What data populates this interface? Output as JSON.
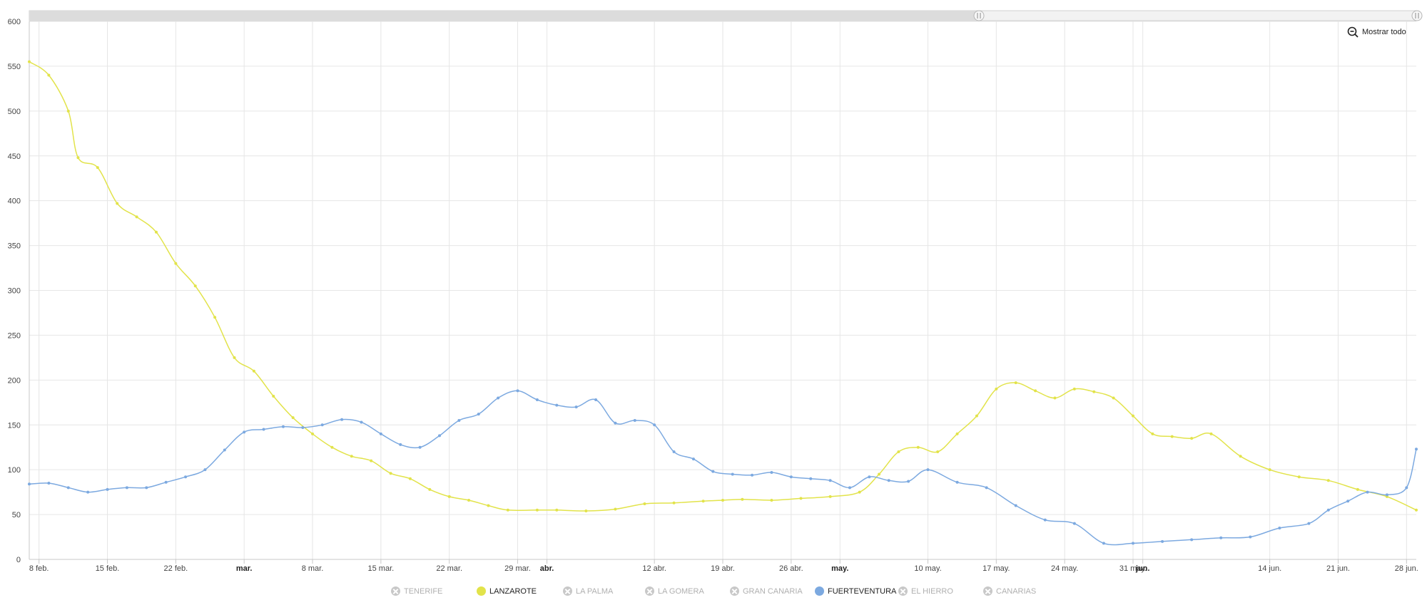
{
  "reset_zoom_label": "Mostrar todo",
  "chart_data": {
    "type": "line",
    "title": "",
    "xlabel": "",
    "ylabel": "",
    "ylim": [
      0,
      600
    ],
    "yticks": [
      0,
      50,
      100,
      150,
      200,
      250,
      300,
      350,
      400,
      450,
      500,
      550,
      600
    ],
    "xrange": [
      "2021-02-07",
      "2021-06-29"
    ],
    "xticks": [
      {
        "date": "2021-02-08",
        "label": "8 feb.",
        "major": false
      },
      {
        "date": "2021-02-15",
        "label": "15 feb.",
        "major": false
      },
      {
        "date": "2021-02-22",
        "label": "22 feb.",
        "major": false
      },
      {
        "date": "2021-03-01",
        "label": "mar.",
        "major": true
      },
      {
        "date": "2021-03-08",
        "label": "8 mar.",
        "major": false
      },
      {
        "date": "2021-03-15",
        "label": "15 mar.",
        "major": false
      },
      {
        "date": "2021-03-22",
        "label": "22 mar.",
        "major": false
      },
      {
        "date": "2021-03-29",
        "label": "29 mar.",
        "major": false
      },
      {
        "date": "2021-04-01",
        "label": "abr.",
        "major": true
      },
      {
        "date": "2021-04-12",
        "label": "12 abr.",
        "major": false
      },
      {
        "date": "2021-04-19",
        "label": "19 abr.",
        "major": false
      },
      {
        "date": "2021-04-26",
        "label": "26 abr.",
        "major": false
      },
      {
        "date": "2021-05-01",
        "label": "may.",
        "major": true
      },
      {
        "date": "2021-05-10",
        "label": "10 may.",
        "major": false
      },
      {
        "date": "2021-05-17",
        "label": "17 may.",
        "major": false
      },
      {
        "date": "2021-05-24",
        "label": "24 may.",
        "major": false
      },
      {
        "date": "2021-05-31",
        "label": "31 may.",
        "major": false
      },
      {
        "date": "2021-06-01",
        "label": "jun.",
        "major": true
      },
      {
        "date": "2021-06-14",
        "label": "14 jun.",
        "major": false
      },
      {
        "date": "2021-06-21",
        "label": "21 jun.",
        "major": false
      },
      {
        "date": "2021-06-28",
        "label": "28 jun.",
        "major": false
      }
    ],
    "grid": true,
    "legend_position": "bottom",
    "series": [
      {
        "name": "LANZAROTE",
        "color": "#e2e34a",
        "x": [
          "2021-02-07",
          "2021-02-09",
          "2021-02-11",
          "2021-02-12",
          "2021-02-14",
          "2021-02-16",
          "2021-02-18",
          "2021-02-20",
          "2021-02-22",
          "2021-02-24",
          "2021-02-26",
          "2021-02-28",
          "2021-03-02",
          "2021-03-04",
          "2021-03-06",
          "2021-03-08",
          "2021-03-10",
          "2021-03-12",
          "2021-03-14",
          "2021-03-16",
          "2021-03-18",
          "2021-03-20",
          "2021-03-22",
          "2021-03-24",
          "2021-03-26",
          "2021-03-28",
          "2021-03-31",
          "2021-04-02",
          "2021-04-05",
          "2021-04-08",
          "2021-04-11",
          "2021-04-14",
          "2021-04-17",
          "2021-04-19",
          "2021-04-21",
          "2021-04-24",
          "2021-04-27",
          "2021-04-30",
          "2021-05-03",
          "2021-05-05",
          "2021-05-07",
          "2021-05-09",
          "2021-05-11",
          "2021-05-13",
          "2021-05-15",
          "2021-05-17",
          "2021-05-19",
          "2021-05-21",
          "2021-05-23",
          "2021-05-25",
          "2021-05-27",
          "2021-05-29",
          "2021-05-31",
          "2021-06-02",
          "2021-06-04",
          "2021-06-06",
          "2021-06-08",
          "2021-06-11",
          "2021-06-14",
          "2021-06-17",
          "2021-06-20",
          "2021-06-23",
          "2021-06-26",
          "2021-06-29"
        ],
        "y": [
          555,
          540,
          500,
          448,
          437,
          397,
          382,
          365,
          330,
          305,
          270,
          225,
          210,
          182,
          158,
          140,
          125,
          115,
          110,
          96,
          90,
          78,
          70,
          66,
          60,
          55,
          55,
          55,
          54,
          56,
          62,
          63,
          65,
          66,
          67,
          66,
          68,
          70,
          75,
          95,
          120,
          125,
          120,
          140,
          160,
          190,
          197,
          188,
          180,
          190,
          187,
          180,
          160,
          140,
          137,
          135,
          140,
          115,
          100,
          92,
          88,
          78,
          70,
          55
        ]
      },
      {
        "name": "FUERTEVENTURA",
        "color": "#7ca9e0",
        "x": [
          "2021-02-07",
          "2021-02-09",
          "2021-02-11",
          "2021-02-13",
          "2021-02-15",
          "2021-02-17",
          "2021-02-19",
          "2021-02-21",
          "2021-02-23",
          "2021-02-25",
          "2021-02-27",
          "2021-03-01",
          "2021-03-03",
          "2021-03-05",
          "2021-03-07",
          "2021-03-09",
          "2021-03-11",
          "2021-03-13",
          "2021-03-15",
          "2021-03-17",
          "2021-03-19",
          "2021-03-21",
          "2021-03-23",
          "2021-03-25",
          "2021-03-27",
          "2021-03-29",
          "2021-03-31",
          "2021-04-02",
          "2021-04-04",
          "2021-04-06",
          "2021-04-08",
          "2021-04-10",
          "2021-04-12",
          "2021-04-14",
          "2021-04-16",
          "2021-04-18",
          "2021-04-20",
          "2021-04-22",
          "2021-04-24",
          "2021-04-26",
          "2021-04-28",
          "2021-04-30",
          "2021-05-02",
          "2021-05-04",
          "2021-05-06",
          "2021-05-08",
          "2021-05-10",
          "2021-05-13",
          "2021-05-16",
          "2021-05-19",
          "2021-05-22",
          "2021-05-25",
          "2021-05-28",
          "2021-05-31",
          "2021-06-03",
          "2021-06-06",
          "2021-06-09",
          "2021-06-12",
          "2021-06-15",
          "2021-06-18",
          "2021-06-20",
          "2021-06-22",
          "2021-06-24",
          "2021-06-26",
          "2021-06-28",
          "2021-06-29"
        ],
        "y": [
          84,
          85,
          80,
          75,
          78,
          80,
          80,
          86,
          92,
          100,
          122,
          142,
          145,
          148,
          147,
          150,
          156,
          153,
          140,
          128,
          125,
          138,
          155,
          162,
          180,
          188,
          178,
          172,
          170,
          178,
          152,
          155,
          150,
          120,
          112,
          98,
          95,
          94,
          97,
          92,
          90,
          88,
          80,
          92,
          88,
          87,
          100,
          86,
          80,
          60,
          44,
          40,
          18,
          18,
          20,
          22,
          24,
          25,
          35,
          40,
          55,
          65,
          75,
          72,
          80,
          123
        ]
      }
    ]
  },
  "legend": [
    {
      "label": "TENERIFE",
      "color": "#c8c8c8",
      "visible": false
    },
    {
      "label": "LANZAROTE",
      "color": "#e2e34a",
      "visible": true
    },
    {
      "label": "LA PALMA",
      "color": "#c8c8c8",
      "visible": false
    },
    {
      "label": "LA GOMERA",
      "color": "#c8c8c8",
      "visible": false
    },
    {
      "label": "GRAN CANARIA",
      "color": "#c8c8c8",
      "visible": false
    },
    {
      "label": "FUERTEVENTURA",
      "color": "#7ca9e0",
      "visible": true
    },
    {
      "label": "EL HIERRO",
      "color": "#c8c8c8",
      "visible": false
    },
    {
      "label": "CANARIAS",
      "color": "#c8c8c8",
      "visible": false
    }
  ]
}
